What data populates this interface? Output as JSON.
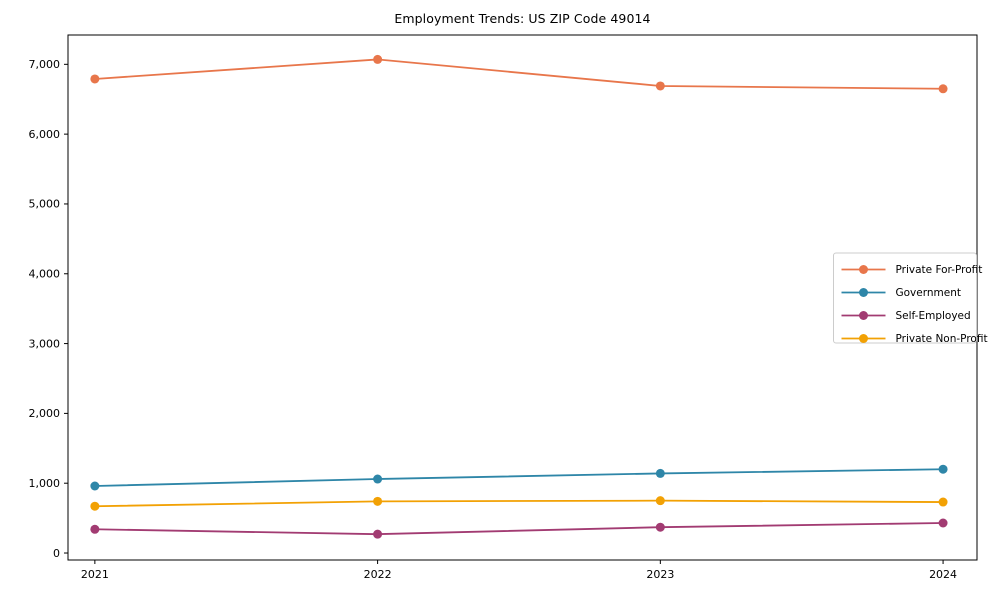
{
  "chart_data": {
    "type": "line",
    "title": "Employment Trends: US ZIP Code 49014",
    "x": [
      2021,
      2022,
      2023,
      2024
    ],
    "x_tick_labels": [
      "2021",
      "2022",
      "2023",
      "2024"
    ],
    "y_ticks": [
      0,
      1000,
      2000,
      3000,
      4000,
      5000,
      6000,
      7000
    ],
    "y_tick_labels": [
      "0",
      "1,000",
      "2,000",
      "3,000",
      "4,000",
      "5,000",
      "6,000",
      "7,000"
    ],
    "xlim": [
      2020.905,
      2024.12
    ],
    "ylim": [
      -100,
      7420
    ],
    "grid": false,
    "legend_position": "center right",
    "series": [
      {
        "name": "Private For-Profit",
        "color": "#E8764B",
        "values": [
          6790,
          7070,
          6690,
          6650
        ]
      },
      {
        "name": "Government",
        "color": "#2E86A8",
        "values": [
          960,
          1060,
          1140,
          1200
        ]
      },
      {
        "name": "Self-Employed",
        "color": "#A23B72",
        "values": [
          340,
          270,
          370,
          430
        ]
      },
      {
        "name": "Private Non-Profit",
        "color": "#F2A104",
        "values": [
          670,
          740,
          750,
          730
        ]
      }
    ],
    "style": {
      "background": "#ffffff",
      "spine_color": "#000000",
      "legend_border": "#cccccc",
      "text_color": "#000000"
    }
  }
}
